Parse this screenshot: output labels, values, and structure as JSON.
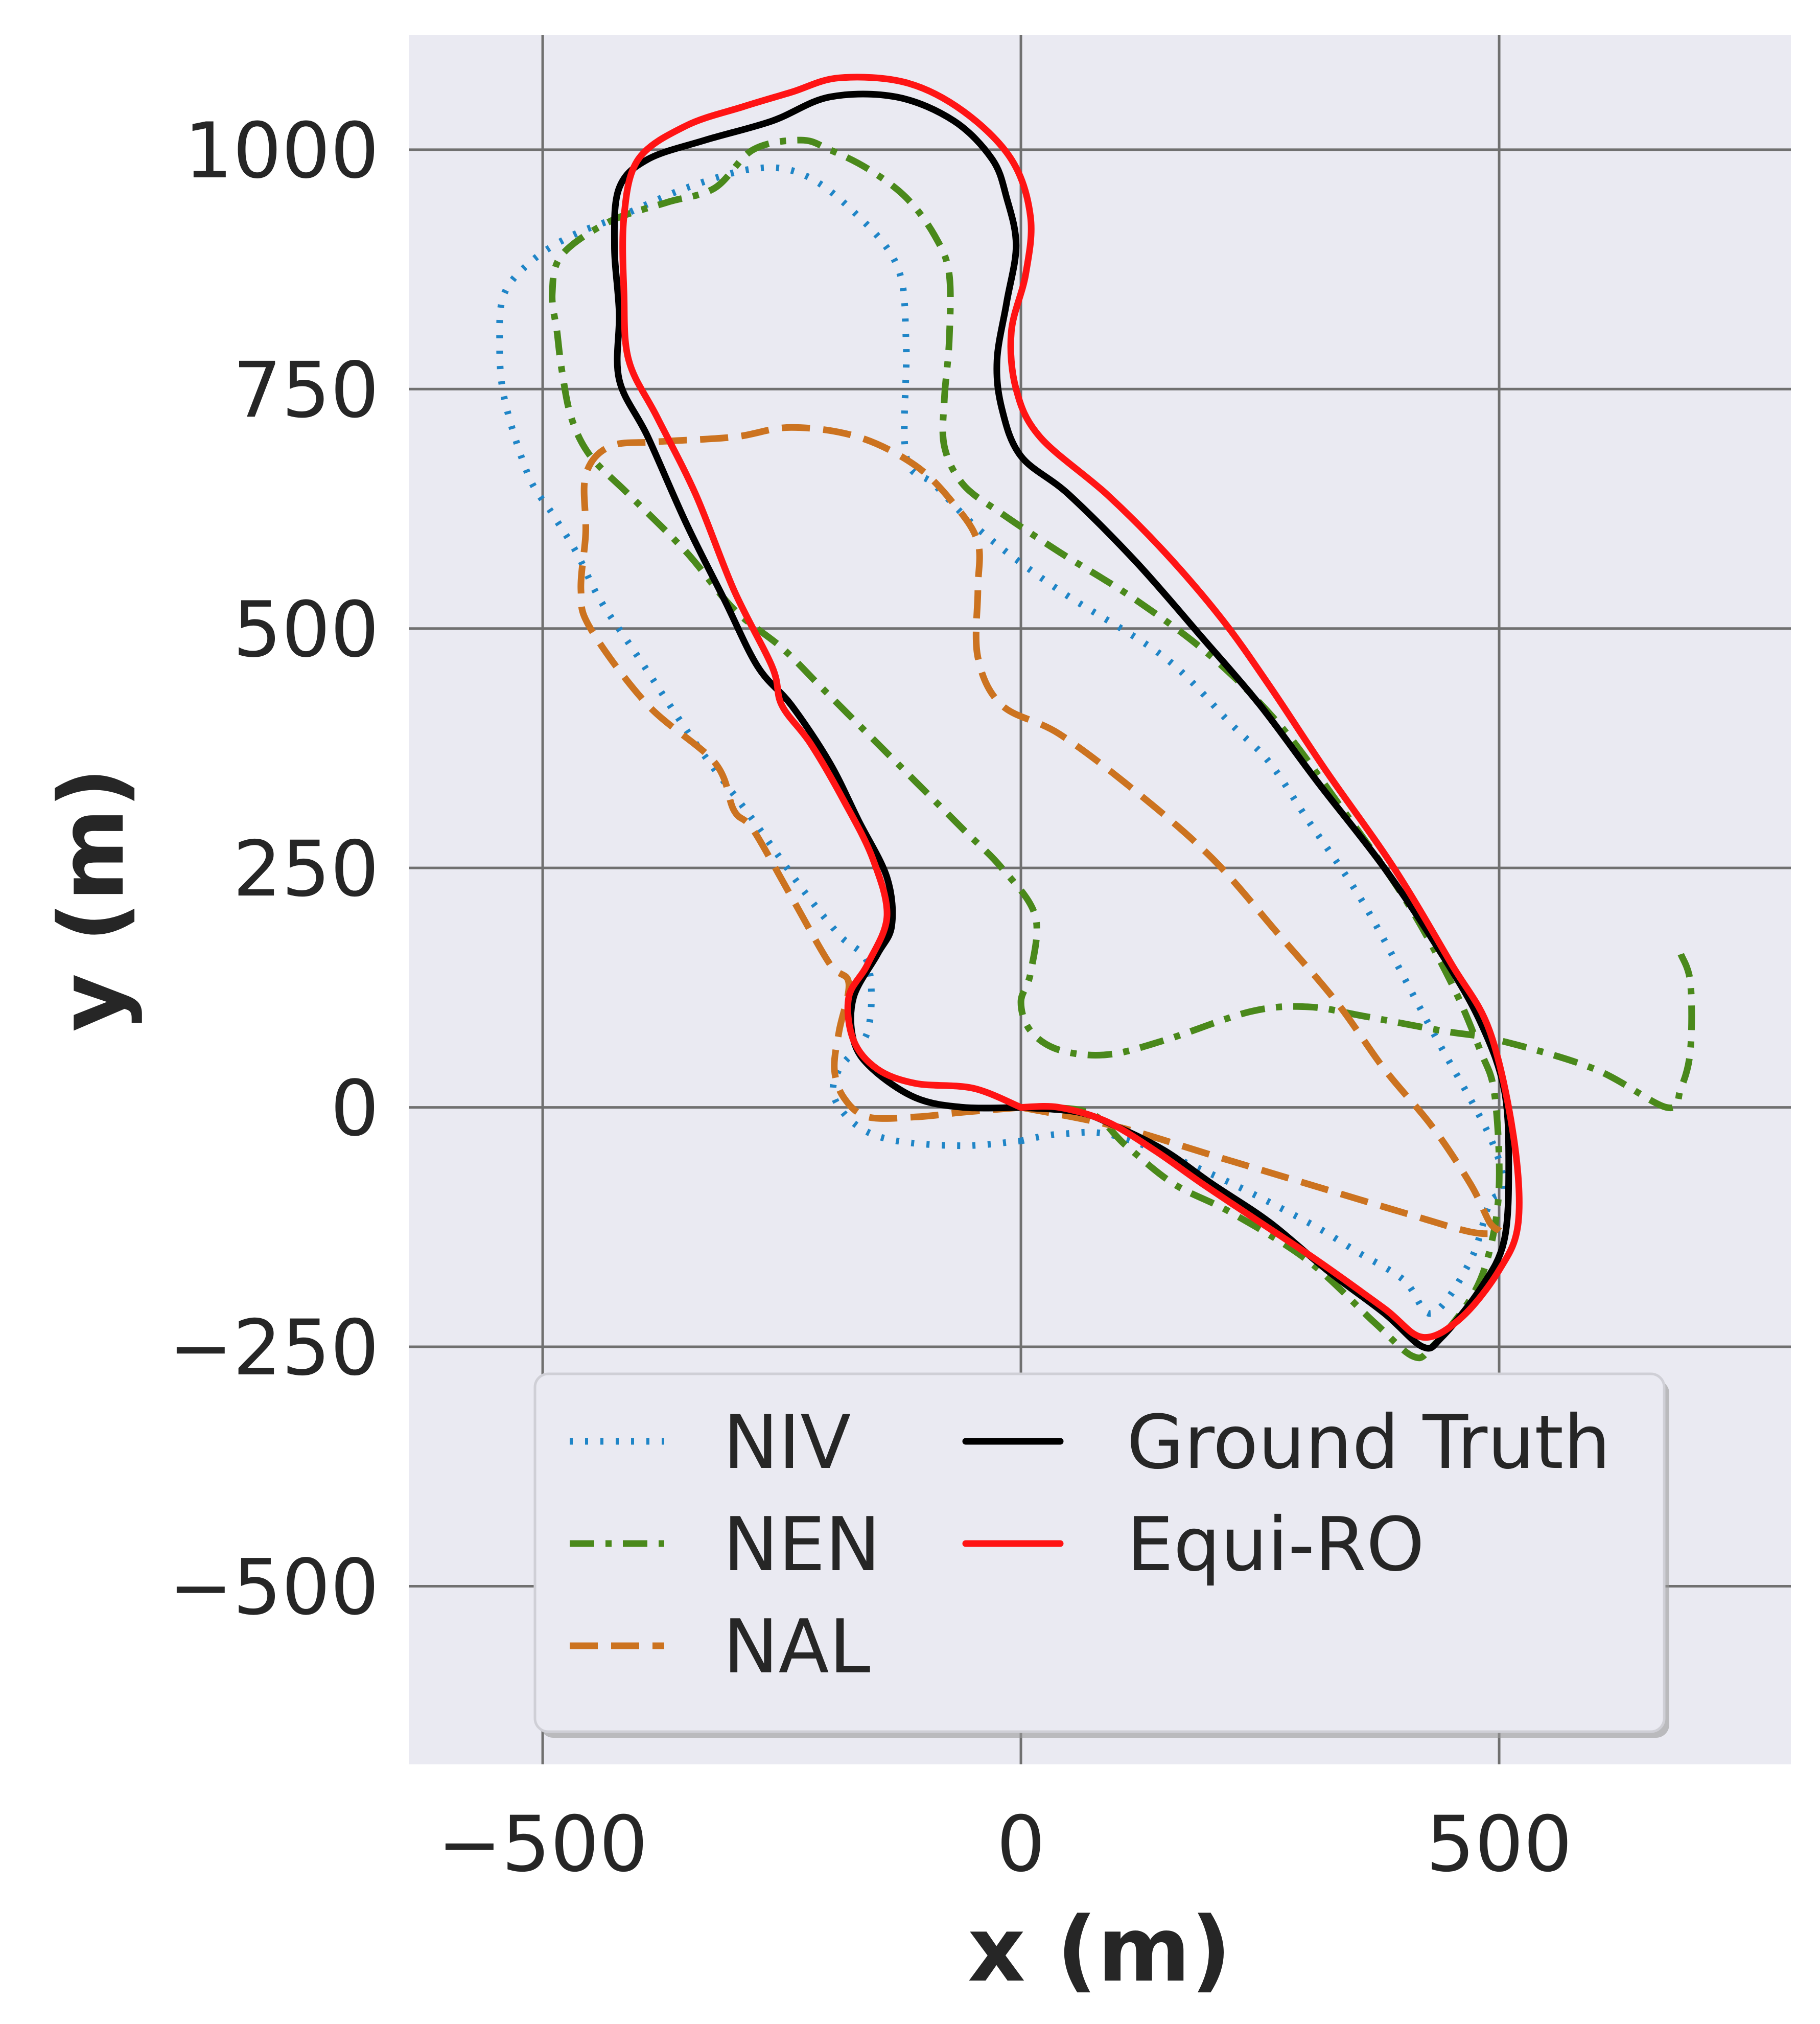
{
  "chart_data": {
    "type": "line",
    "xlabel": "x (m)",
    "ylabel": "y (m)",
    "xlim": [
      -640,
      805
    ],
    "ylim": [
      -686,
      1120
    ],
    "xticks": [
      -500,
      0,
      500
    ],
    "yticks": [
      -500,
      -250,
      0,
      250,
      500,
      750,
      1000
    ],
    "xtick_labels": [
      "−500",
      "0",
      "500"
    ],
    "ytick_labels": [
      "−500",
      "−250",
      "0",
      "250",
      "500",
      "750",
      "1000"
    ],
    "grid": true,
    "legend": {
      "placement": "lower-center",
      "columns": 2
    },
    "series": [
      {
        "name": "NIV",
        "color": "#1f85c7",
        "style": "dotted",
        "points": [
          [
            0,
            -35
          ],
          [
            40,
            -28
          ],
          [
            100,
            -30
          ],
          [
            200,
            -70
          ],
          [
            300,
            -120
          ],
          [
            350,
            -150
          ],
          [
            400,
            -180
          ],
          [
            430,
            -215
          ],
          [
            470,
            -160
          ],
          [
            490,
            -100
          ],
          [
            505,
            -85
          ],
          [
            490,
            -30
          ],
          [
            430,
            80
          ],
          [
            360,
            210
          ],
          [
            300,
            300
          ],
          [
            260,
            360
          ],
          [
            220,
            400
          ],
          [
            150,
            470
          ],
          [
            40,
            540
          ],
          [
            -40,
            600
          ],
          [
            -90,
            650
          ],
          [
            -120,
            680
          ],
          [
            -120,
            800
          ],
          [
            -130,
            880
          ],
          [
            -180,
            940
          ],
          [
            -230,
            975
          ],
          [
            -280,
            980
          ],
          [
            -350,
            960
          ],
          [
            -420,
            930
          ],
          [
            -470,
            910
          ],
          [
            -510,
            885
          ],
          [
            -540,
            850
          ],
          [
            -545,
            800
          ],
          [
            -540,
            740
          ],
          [
            -515,
            660
          ],
          [
            -490,
            620
          ],
          [
            -465,
            580
          ],
          [
            -440,
            530
          ],
          [
            -400,
            470
          ],
          [
            -340,
            380
          ],
          [
            -280,
            300
          ],
          [
            -230,
            230
          ],
          [
            -190,
            180
          ],
          [
            -160,
            150
          ],
          [
            -160,
            80
          ],
          [
            -190,
            40
          ],
          [
            -195,
            10
          ],
          [
            -170,
            -20
          ],
          [
            -130,
            -35
          ],
          [
            -60,
            -40
          ],
          [
            0,
            -35
          ]
        ]
      },
      {
        "name": "NEN",
        "color": "#4a891b",
        "style": "dashdot",
        "points": [
          [
            690,
            160
          ],
          [
            700,
            130
          ],
          [
            700,
            60
          ],
          [
            690,
            20
          ],
          [
            675,
            0
          ],
          [
            600,
            40
          ],
          [
            500,
            70
          ],
          [
            440,
            80
          ],
          [
            360,
            95
          ],
          [
            300,
            105
          ],
          [
            240,
            100
          ],
          [
            150,
            70
          ],
          [
            90,
            55
          ],
          [
            40,
            60
          ],
          [
            10,
            80
          ],
          [
            0,
            110
          ],
          [
            10,
            140
          ],
          [
            15,
            200
          ],
          [
            -20,
            250
          ],
          [
            -60,
            290
          ],
          [
            -110,
            340
          ],
          [
            -150,
            380
          ],
          [
            -180,
            410
          ],
          [
            -210,
            440
          ],
          [
            -250,
            480
          ],
          [
            -300,
            520
          ],
          [
            -350,
            580
          ],
          [
            -410,
            640
          ],
          [
            -450,
            680
          ],
          [
            -470,
            720
          ],
          [
            -480,
            770
          ],
          [
            -485,
            810
          ],
          [
            -490,
            850
          ],
          [
            -480,
            890
          ],
          [
            -430,
            925
          ],
          [
            -370,
            945
          ],
          [
            -320,
            960
          ],
          [
            -280,
            1000
          ],
          [
            -230,
            1010
          ],
          [
            -200,
            1000
          ],
          [
            -160,
            980
          ],
          [
            -120,
            950
          ],
          [
            -90,
            910
          ],
          [
            -75,
            870
          ],
          [
            -75,
            800
          ],
          [
            -80,
            740
          ],
          [
            -80,
            690
          ],
          [
            -60,
            650
          ],
          [
            -20,
            620
          ],
          [
            40,
            580
          ],
          [
            120,
            530
          ],
          [
            200,
            470
          ],
          [
            270,
            400
          ],
          [
            330,
            320
          ],
          [
            400,
            220
          ],
          [
            450,
            130
          ],
          [
            480,
            60
          ],
          [
            495,
            15
          ],
          [
            500,
            -80
          ],
          [
            490,
            -150
          ],
          [
            470,
            -200
          ],
          [
            430,
            -250
          ],
          [
            410,
            -260
          ],
          [
            370,
            -225
          ],
          [
            300,
            -160
          ],
          [
            220,
            -110
          ],
          [
            160,
            -80
          ],
          [
            110,
            -40
          ],
          [
            70,
            -5
          ],
          [
            0,
            0
          ]
        ]
      },
      {
        "name": "NAL",
        "color": "#cc7320",
        "style": "dashed",
        "points": [
          [
            0,
            0
          ],
          [
            -60,
            -5
          ],
          [
            -110,
            -10
          ],
          [
            -160,
            -10
          ],
          [
            -185,
            10
          ],
          [
            -195,
            40
          ],
          [
            -190,
            80
          ],
          [
            -180,
            130
          ],
          [
            -200,
            150
          ],
          [
            -240,
            220
          ],
          [
            -280,
            290
          ],
          [
            -300,
            310
          ],
          [
            -320,
            360
          ],
          [
            -390,
            420
          ],
          [
            -450,
            500
          ],
          [
            -460,
            540
          ],
          [
            -455,
            600
          ],
          [
            -455,
            660
          ],
          [
            -430,
            690
          ],
          [
            -380,
            695
          ],
          [
            -300,
            700
          ],
          [
            -240,
            710
          ],
          [
            -170,
            700
          ],
          [
            -110,
            670
          ],
          [
            -70,
            630
          ],
          [
            -45,
            590
          ],
          [
            -45,
            540
          ],
          [
            -45,
            470
          ],
          [
            -20,
            420
          ],
          [
            40,
            390
          ],
          [
            120,
            330
          ],
          [
            200,
            260
          ],
          [
            270,
            180
          ],
          [
            330,
            110
          ],
          [
            380,
            40
          ],
          [
            430,
            -20
          ],
          [
            470,
            -80
          ],
          [
            490,
            -120
          ],
          [
            500,
            -130
          ],
          [
            470,
            -130
          ],
          [
            400,
            -110
          ],
          [
            300,
            -80
          ],
          [
            200,
            -50
          ],
          [
            100,
            -20
          ],
          [
            0,
            0
          ]
        ]
      },
      {
        "name": "Ground Truth",
        "color": "#000000",
        "style": "solid",
        "points": [
          [
            0,
            0
          ],
          [
            -60,
            0
          ],
          [
            -110,
            10
          ],
          [
            -155,
            40
          ],
          [
            -175,
            70
          ],
          [
            -175,
            115
          ],
          [
            -150,
            160
          ],
          [
            -135,
            190
          ],
          [
            -140,
            240
          ],
          [
            -170,
            300
          ],
          [
            -200,
            360
          ],
          [
            -240,
            420
          ],
          [
            -275,
            460
          ],
          [
            -310,
            530
          ],
          [
            -350,
            610
          ],
          [
            -390,
            700
          ],
          [
            -420,
            760
          ],
          [
            -420,
            830
          ],
          [
            -425,
            900
          ],
          [
            -420,
            960
          ],
          [
            -390,
            990
          ],
          [
            -330,
            1010
          ],
          [
            -260,
            1030
          ],
          [
            -200,
            1055
          ],
          [
            -130,
            1055
          ],
          [
            -70,
            1030
          ],
          [
            -30,
            990
          ],
          [
            -15,
            950
          ],
          [
            -5,
            900
          ],
          [
            -15,
            840
          ],
          [
            -25,
            780
          ],
          [
            -20,
            730
          ],
          [
            0,
            680
          ],
          [
            50,
            640
          ],
          [
            120,
            570
          ],
          [
            190,
            490
          ],
          [
            250,
            420
          ],
          [
            310,
            340
          ],
          [
            380,
            250
          ],
          [
            440,
            160
          ],
          [
            480,
            90
          ],
          [
            505,
            20
          ],
          [
            510,
            -60
          ],
          [
            505,
            -140
          ],
          [
            480,
            -190
          ],
          [
            440,
            -240
          ],
          [
            420,
            -250
          ],
          [
            380,
            -215
          ],
          [
            320,
            -170
          ],
          [
            260,
            -120
          ],
          [
            200,
            -80
          ],
          [
            150,
            -45
          ],
          [
            100,
            -20
          ],
          [
            60,
            -5
          ],
          [
            0,
            0
          ]
        ]
      },
      {
        "name": "Equi-RO",
        "color": "#ff1414",
        "style": "solid",
        "points": [
          [
            0,
            0
          ],
          [
            -50,
            20
          ],
          [
            -110,
            25
          ],
          [
            -150,
            40
          ],
          [
            -175,
            70
          ],
          [
            -180,
            115
          ],
          [
            -160,
            150
          ],
          [
            -140,
            200
          ],
          [
            -155,
            260
          ],
          [
            -185,
            320
          ],
          [
            -220,
            380
          ],
          [
            -250,
            420
          ],
          [
            -260,
            460
          ],
          [
            -300,
            540
          ],
          [
            -340,
            640
          ],
          [
            -380,
            720
          ],
          [
            -410,
            780
          ],
          [
            -415,
            850
          ],
          [
            -415,
            930
          ],
          [
            -400,
            990
          ],
          [
            -350,
            1025
          ],
          [
            -290,
            1045
          ],
          [
            -240,
            1060
          ],
          [
            -190,
            1075
          ],
          [
            -120,
            1070
          ],
          [
            -60,
            1040
          ],
          [
            -10,
            990
          ],
          [
            10,
            930
          ],
          [
            5,
            870
          ],
          [
            -10,
            810
          ],
          [
            -5,
            750
          ],
          [
            20,
            700
          ],
          [
            90,
            640
          ],
          [
            150,
            580
          ],
          [
            210,
            510
          ],
          [
            260,
            440
          ],
          [
            320,
            350
          ],
          [
            390,
            250
          ],
          [
            450,
            150
          ],
          [
            490,
            80
          ],
          [
            515,
            -30
          ],
          [
            520,
            -120
          ],
          [
            500,
            -170
          ],
          [
            460,
            -220
          ],
          [
            420,
            -240
          ],
          [
            380,
            -210
          ],
          [
            310,
            -160
          ],
          [
            250,
            -120
          ],
          [
            190,
            -80
          ],
          [
            140,
            -45
          ],
          [
            90,
            -15
          ],
          [
            40,
            0
          ],
          [
            0,
            0
          ]
        ]
      }
    ]
  }
}
